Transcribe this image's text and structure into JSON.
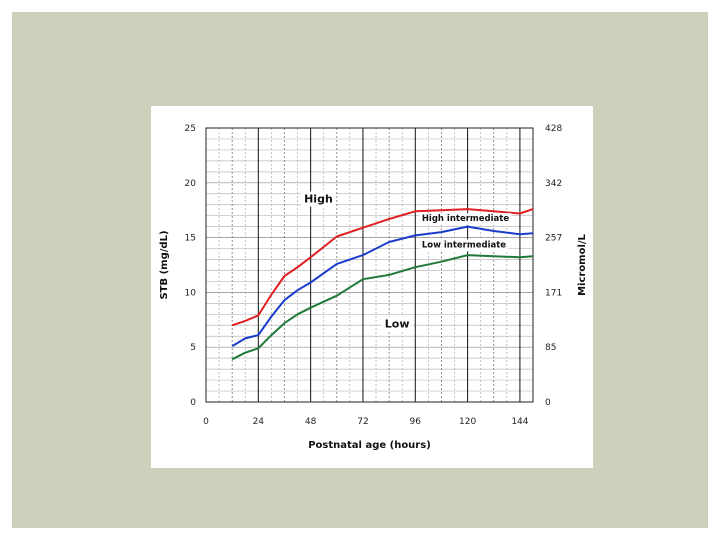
{
  "chart_data": {
    "type": "line",
    "title": "",
    "xlabel": "Postnatal age (hours)",
    "ylabel": "STB (mg/dL)",
    "y2label": "Micromol/L",
    "xlim": [
      0,
      150
    ],
    "ylim": [
      0,
      25
    ],
    "x_ticks": [
      0,
      24,
      48,
      72,
      96,
      120,
      144
    ],
    "y_ticks": [
      0,
      5,
      10,
      15,
      20,
      25
    ],
    "y2_ticks": [
      {
        "y": 0,
        "label": "0"
      },
      {
        "y": 5,
        "label": "85"
      },
      {
        "y": 10,
        "label": "171"
      },
      {
        "y": 15,
        "label": "257"
      },
      {
        "y": 20,
        "label": "342"
      },
      {
        "y": 25,
        "label": "428"
      }
    ],
    "grid": true,
    "zone_labels": [
      {
        "text": "High",
        "x": 45,
        "y": 18.2
      },
      {
        "text": "Low",
        "x": 82,
        "y": 6.8
      }
    ],
    "series": [
      {
        "name": "High intermediate",
        "color": "#e02020",
        "x": [
          12,
          18,
          24,
          30,
          36,
          42,
          48,
          60,
          72,
          84,
          96,
          108,
          120,
          132,
          144,
          150
        ],
        "y": [
          7.0,
          7.4,
          7.9,
          9.8,
          11.5,
          12.3,
          13.2,
          15.1,
          15.9,
          16.7,
          17.4,
          17.5,
          17.6,
          17.4,
          17.2,
          17.6
        ]
      },
      {
        "name": "Low intermediate",
        "color": "#1a3ccc",
        "x": [
          12,
          18,
          24,
          30,
          36,
          42,
          48,
          60,
          72,
          84,
          96,
          108,
          120,
          132,
          144,
          150
        ],
        "y": [
          5.1,
          5.8,
          6.1,
          7.8,
          9.3,
          10.2,
          10.9,
          12.6,
          13.4,
          14.6,
          15.2,
          15.5,
          16.0,
          15.6,
          15.3,
          15.4
        ]
      },
      {
        "name": "",
        "color": "#1f7a3a",
        "x": [
          12,
          18,
          24,
          30,
          36,
          42,
          48,
          60,
          72,
          84,
          96,
          108,
          120,
          132,
          144,
          150
        ],
        "y": [
          3.9,
          4.5,
          4.9,
          6.1,
          7.2,
          8.0,
          8.6,
          9.7,
          11.2,
          11.6,
          12.3,
          12.8,
          13.4,
          13.3,
          13.2,
          13.3
        ]
      }
    ],
    "series_labels": [
      {
        "text": "High intermediate",
        "x": 99,
        "y": 16.5
      },
      {
        "text": "Low intermediate",
        "x": 99,
        "y": 14.1
      }
    ]
  }
}
